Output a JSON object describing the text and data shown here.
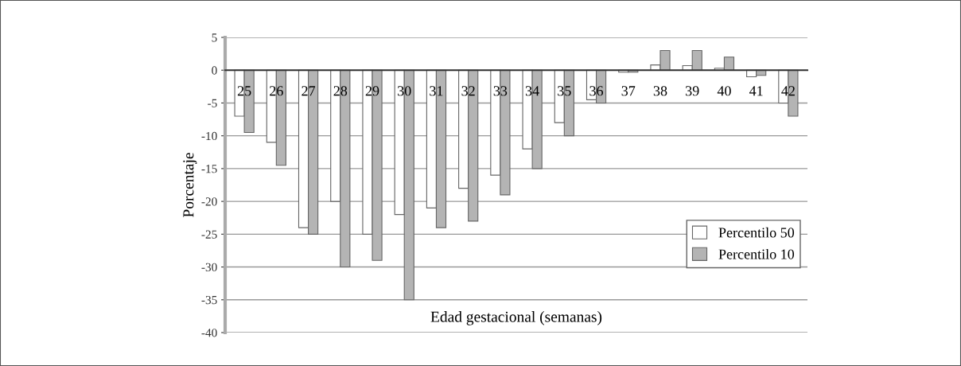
{
  "chart_data": {
    "type": "bar",
    "xlabel": "Edad gestacional (semanas)",
    "ylabel": "Porcentaje",
    "categories": [
      "25",
      "26",
      "27",
      "28",
      "29",
      "30",
      "31",
      "32",
      "33",
      "34",
      "35",
      "36",
      "37",
      "38",
      "39",
      "40",
      "41",
      "42"
    ],
    "series": [
      {
        "name": "Percentilo 50",
        "color": "#ffffff",
        "values": [
          -7,
          -11,
          -24,
          -20,
          -25,
          -22,
          -21,
          -18,
          -16,
          -12,
          -8,
          -4.5,
          -0.3,
          0.8,
          0.7,
          0.3,
          -1,
          -5
        ]
      },
      {
        "name": "Percentilo 10",
        "color": "#b4b4b4",
        "values": [
          -9.5,
          -14.5,
          -25,
          -30,
          -29,
          -35,
          -24,
          -23,
          -19,
          -15,
          -10,
          -5,
          -0.3,
          3,
          3,
          2,
          -0.8,
          -7
        ]
      }
    ],
    "ylim": [
      -40,
      5
    ],
    "yticks": [
      5,
      0,
      -5,
      -10,
      -15,
      -20,
      -25,
      -30,
      -35,
      -40
    ],
    "grid": "y",
    "legend": "right"
  }
}
